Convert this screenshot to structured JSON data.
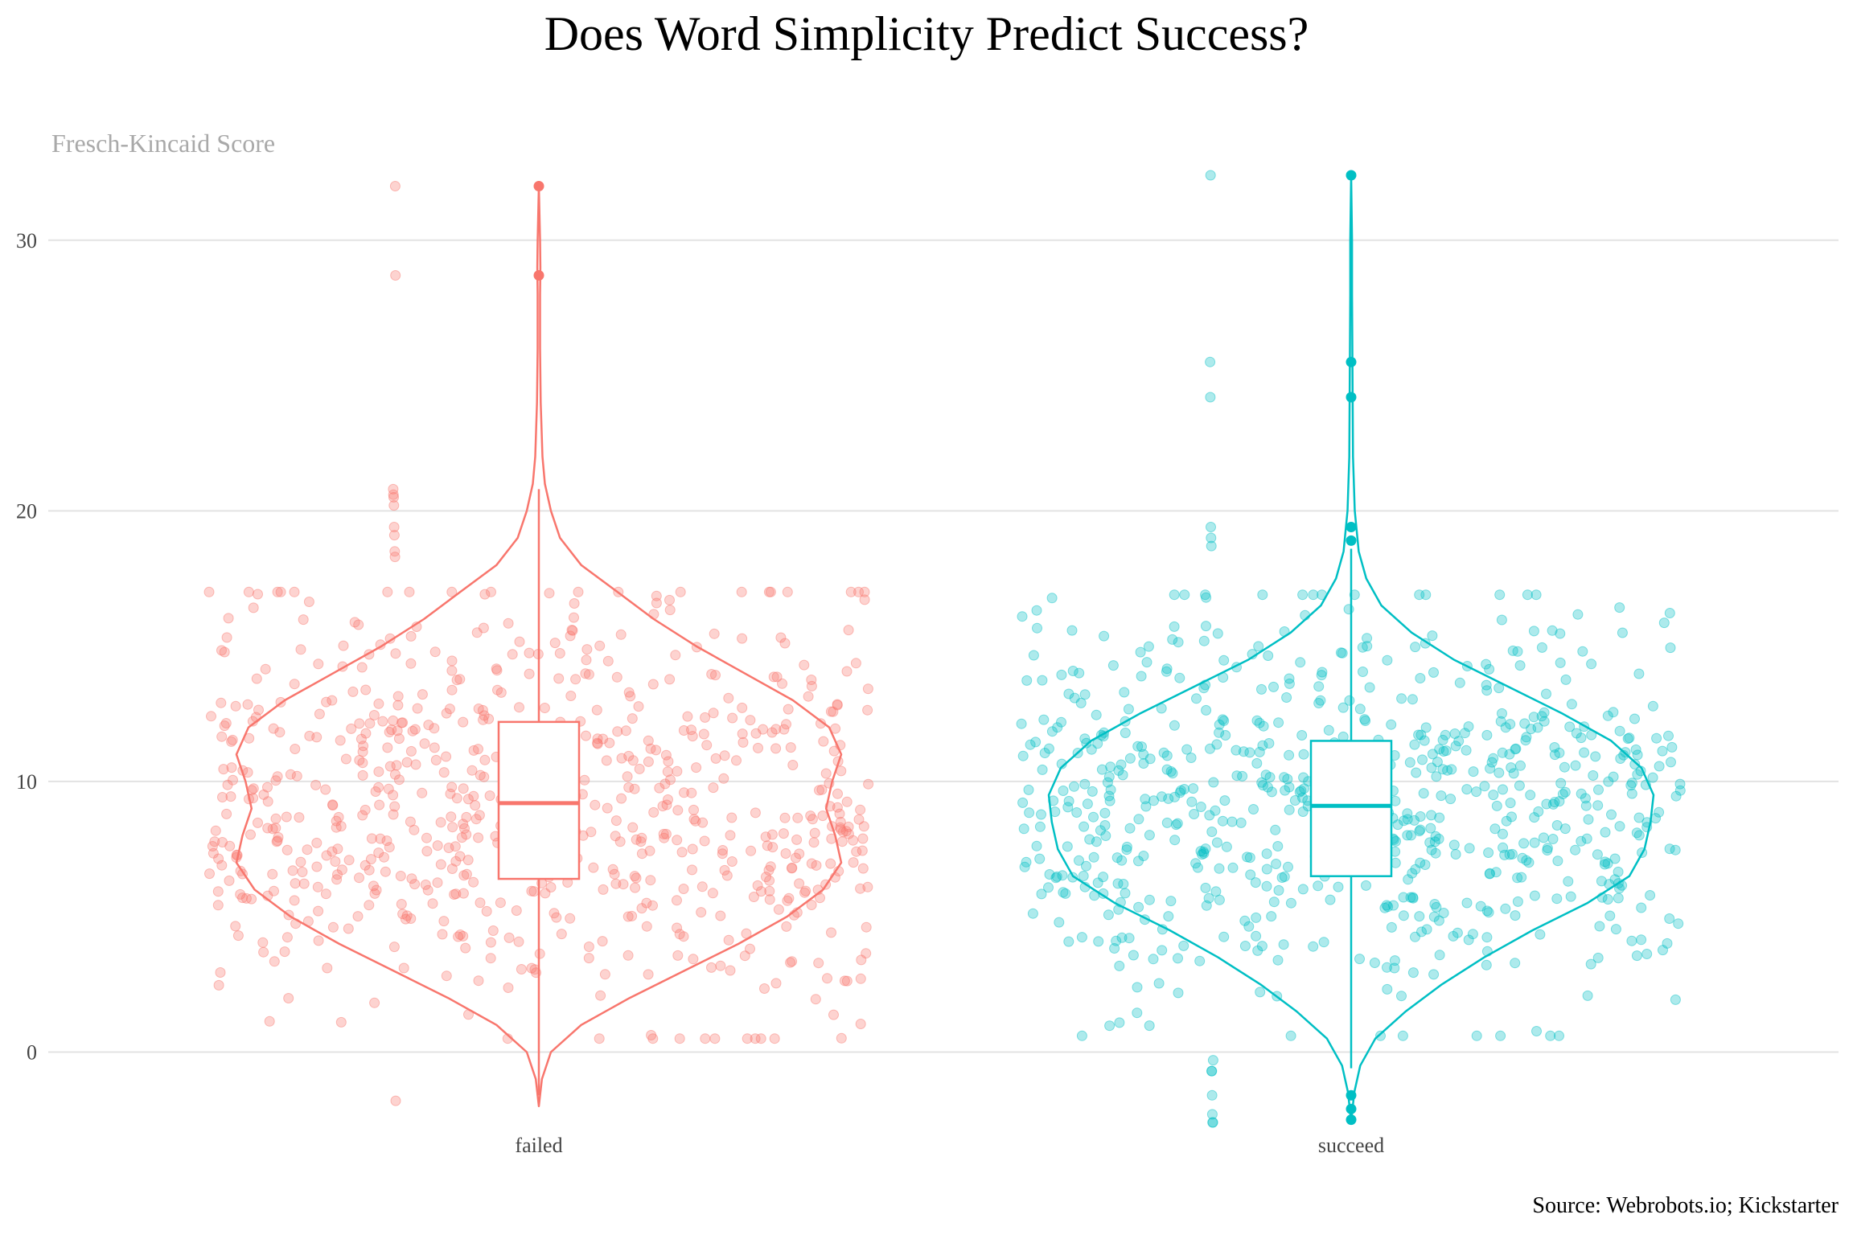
{
  "chart_data": {
    "type": "violin",
    "title": "Does Word Simplicity Predict Success?",
    "ylabel": "Fresch-Kincaid Score",
    "xlabel": "",
    "source": "Source: Webrobots.io; Kickstarter",
    "ylim": [
      -2.6,
      32.4
    ],
    "yticks": [
      0,
      10,
      20,
      30
    ],
    "grid": true,
    "categories": [
      "failed",
      "succeed"
    ],
    "series": [
      {
        "category": "failed",
        "color": "#F8766D",
        "box": {
          "q1": 6.4,
          "median": 9.2,
          "q3": 12.2,
          "whisker_low": -1.6,
          "whisker_high": 20.8
        },
        "outliers": [
          32.0,
          28.7
        ],
        "violin_profile": [
          [
            -2.0,
            0.0
          ],
          [
            -1.0,
            0.01
          ],
          [
            0.0,
            0.04
          ],
          [
            1.0,
            0.14
          ],
          [
            2.0,
            0.3
          ],
          [
            3.0,
            0.48
          ],
          [
            4.0,
            0.66
          ],
          [
            5.0,
            0.82
          ],
          [
            6.0,
            0.94
          ],
          [
            7.0,
            1.0
          ],
          [
            8.0,
            0.98
          ],
          [
            9.0,
            0.95
          ],
          [
            10.0,
            0.97
          ],
          [
            11.0,
            1.0
          ],
          [
            12.0,
            0.96
          ],
          [
            13.0,
            0.84
          ],
          [
            14.0,
            0.68
          ],
          [
            15.0,
            0.52
          ],
          [
            16.0,
            0.38
          ],
          [
            17.0,
            0.26
          ],
          [
            18.0,
            0.14
          ],
          [
            19.0,
            0.07
          ],
          [
            20.0,
            0.04
          ],
          [
            21.0,
            0.02
          ],
          [
            22.0,
            0.012
          ],
          [
            24.0,
            0.006
          ],
          [
            26.0,
            0.004
          ],
          [
            28.0,
            0.004
          ],
          [
            29.0,
            0.005
          ],
          [
            30.0,
            0.004
          ],
          [
            32.0,
            0.0
          ]
        ],
        "jitter": {
          "count": 720,
          "mean": 9.6,
          "sd": 4.0,
          "min": 0.5,
          "max": 17.0,
          "seed": 11
        },
        "extra_points": [
          20.8,
          20.6,
          20.5,
          20.2,
          19.4,
          19.1,
          18.5,
          18.3,
          32.0,
          28.7,
          -1.8
        ]
      },
      {
        "category": "succeed",
        "color": "#00BFC4",
        "box": {
          "q1": 6.5,
          "median": 9.1,
          "q3": 11.5,
          "whisker_low": -0.6,
          "whisker_high": 18.6
        },
        "outliers": [
          32.4,
          25.5,
          24.2,
          19.4,
          18.9,
          -1.6,
          -2.1,
          -2.5
        ],
        "violin_profile": [
          [
            -2.6,
            0.0
          ],
          [
            -1.5,
            0.01
          ],
          [
            -0.5,
            0.03
          ],
          [
            0.5,
            0.08
          ],
          [
            1.5,
            0.18
          ],
          [
            2.5,
            0.3
          ],
          [
            3.5,
            0.44
          ],
          [
            4.5,
            0.6
          ],
          [
            5.5,
            0.78
          ],
          [
            6.5,
            0.92
          ],
          [
            7.5,
            0.97
          ],
          [
            8.5,
            0.99
          ],
          [
            9.5,
            1.0
          ],
          [
            10.5,
            0.96
          ],
          [
            11.5,
            0.86
          ],
          [
            12.5,
            0.7
          ],
          [
            13.5,
            0.52
          ],
          [
            14.5,
            0.34
          ],
          [
            15.5,
            0.2
          ],
          [
            16.5,
            0.1
          ],
          [
            17.5,
            0.05
          ],
          [
            18.5,
            0.025
          ],
          [
            20.0,
            0.012
          ],
          [
            22.0,
            0.006
          ],
          [
            24.0,
            0.005
          ],
          [
            26.0,
            0.004
          ],
          [
            28.0,
            0.003
          ],
          [
            30.0,
            0.003
          ],
          [
            32.4,
            0.0
          ]
        ],
        "jitter": {
          "count": 720,
          "mean": 9.2,
          "sd": 3.6,
          "min": 0.6,
          "max": 16.9,
          "seed": 29
        },
        "extra_points": [
          25.5,
          24.2,
          32.4,
          19.4,
          19.0,
          18.7,
          -0.7,
          -0.7,
          -1.6,
          -2.3,
          -2.6,
          -2.6,
          -0.3
        ]
      }
    ]
  }
}
